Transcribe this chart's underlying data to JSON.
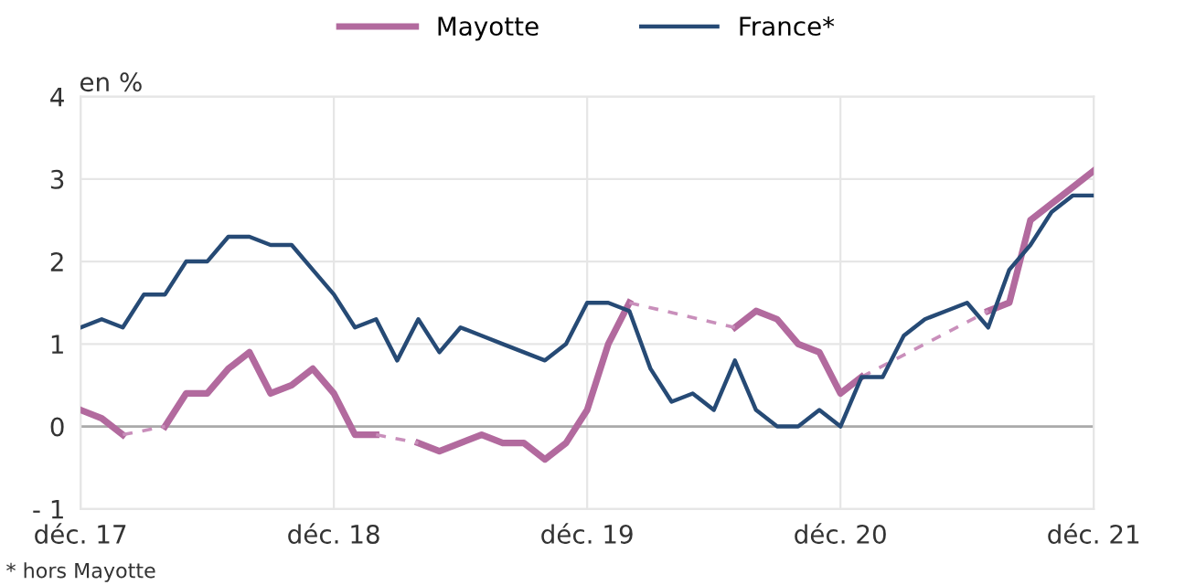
{
  "chart_data": {
    "type": "line",
    "ylabel": "en %",
    "x": [
      "2017-12",
      "2018-01",
      "2018-02",
      "2018-03",
      "2018-04",
      "2018-05",
      "2018-06",
      "2018-07",
      "2018-08",
      "2018-09",
      "2018-10",
      "2018-11",
      "2018-12",
      "2019-01",
      "2019-02",
      "2019-03",
      "2019-04",
      "2019-05",
      "2019-06",
      "2019-07",
      "2019-08",
      "2019-09",
      "2019-10",
      "2019-11",
      "2019-12",
      "2020-01",
      "2020-02",
      "2020-03",
      "2020-04",
      "2020-05",
      "2020-06",
      "2020-07",
      "2020-08",
      "2020-09",
      "2020-10",
      "2020-11",
      "2020-12",
      "2021-01",
      "2021-02",
      "2021-03",
      "2021-04",
      "2021-05",
      "2021-06",
      "2021-07",
      "2021-08",
      "2021-09",
      "2021-10",
      "2021-11",
      "2021-12"
    ],
    "series": [
      {
        "name": "Mayotte",
        "color": "#b26a9e",
        "values": [
          0.2,
          0.1,
          -0.1,
          null,
          0.0,
          0.4,
          0.4,
          0.7,
          0.9,
          0.4,
          0.5,
          0.7,
          0.4,
          -0.1,
          -0.1,
          null,
          -0.2,
          -0.3,
          -0.2,
          -0.1,
          -0.2,
          -0.2,
          -0.4,
          -0.2,
          0.2,
          1.0,
          1.5,
          null,
          null,
          null,
          null,
          1.2,
          1.4,
          1.3,
          1.0,
          0.9,
          0.4,
          0.6,
          null,
          null,
          null,
          null,
          null,
          1.4,
          1.5,
          2.5,
          2.7,
          2.9,
          3.1
        ]
      },
      {
        "color": "#c98fbb",
        "line_style": "dashed",
        "x": [
          "2018-02",
          "2018-04"
        ],
        "values": [
          -0.1,
          0.0
        ]
      },
      {
        "color": "#c98fbb",
        "line_style": "dashed",
        "x": [
          "2019-02",
          "2019-04"
        ],
        "values": [
          -0.1,
          -0.2
        ]
      },
      {
        "color": "#c98fbb",
        "line_style": "dashed",
        "x": [
          "2020-02",
          "2020-07"
        ],
        "values": [
          1.5,
          1.2
        ]
      },
      {
        "color": "#c98fbb",
        "line_style": "dashed",
        "x": [
          "2021-01",
          "2021-07"
        ],
        "values": [
          0.6,
          1.4
        ]
      },
      {
        "name": "France*",
        "color": "#264a75",
        "values": [
          1.2,
          1.3,
          1.2,
          1.6,
          1.6,
          2.0,
          2.0,
          2.3,
          2.3,
          2.2,
          2.2,
          1.9,
          1.6,
          1.2,
          1.3,
          0.8,
          1.3,
          0.9,
          1.2,
          1.1,
          1.0,
          0.9,
          0.8,
          1.0,
          1.5,
          1.5,
          1.4,
          0.7,
          0.3,
          0.4,
          0.2,
          0.8,
          0.2,
          0.0,
          0.0,
          0.2,
          0.0,
          0.6,
          0.6,
          1.1,
          1.3,
          1.4,
          1.5,
          1.2,
          1.9,
          2.2,
          2.6,
          2.8,
          2.8
        ]
      }
    ],
    "xlim": [
      "2017-12",
      "2021-12"
    ],
    "xticks": [
      {
        "value": "2017-12",
        "label": "déc. 17"
      },
      {
        "value": "2018-12",
        "label": "déc. 18"
      },
      {
        "value": "2019-12",
        "label": "déc. 19"
      },
      {
        "value": "2020-12",
        "label": "déc. 20"
      },
      {
        "value": "2021-12",
        "label": "déc. 21"
      }
    ],
    "ylim": [
      -1,
      4
    ],
    "yticks": [
      {
        "value": -1,
        "label": "- 1"
      },
      0,
      1,
      2,
      3,
      4
    ],
    "ref_lines": [
      {
        "axis": "y",
        "value": 0,
        "color": "#aaaaaa"
      }
    ],
    "grid": true,
    "legend": "top",
    "line_style": "solid",
    "marker": "none",
    "annotations": [
      "* hors Mayotte"
    ]
  }
}
